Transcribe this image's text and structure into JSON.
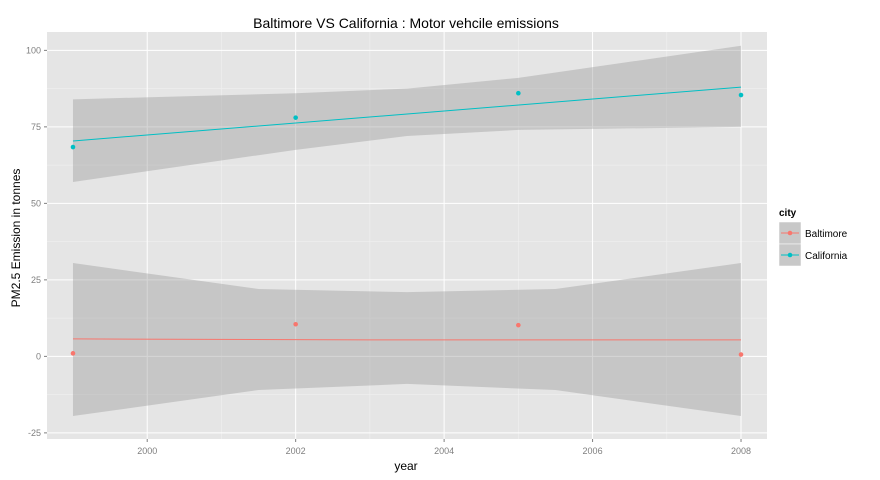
{
  "chart_data": {
    "type": "scatter",
    "title": "Baltimore VS California : Motor vehcile emissions",
    "xlabel": "year",
    "ylabel": "PM2.5 Emission in tonnes",
    "xlim": [
      1998.65,
      2008.35
    ],
    "ylim": [
      -27,
      106
    ],
    "x_ticks": [
      2000,
      2002,
      2004,
      2006,
      2008
    ],
    "x_tick_labels": [
      "2000",
      "2002",
      "2004",
      "2006",
      "2008"
    ],
    "y_ticks": [
      -25,
      0,
      25,
      50,
      75,
      100
    ],
    "y_tick_labels": [
      "-25",
      "0",
      "25",
      "50",
      "75",
      "100"
    ],
    "grid": true,
    "legend": {
      "title": "city",
      "position": "right",
      "entries": [
        "Baltimore",
        "California"
      ]
    },
    "x": [
      1999,
      2002,
      2005,
      2008
    ],
    "series": [
      {
        "name": "Baltimore",
        "color": "#F8766D",
        "values": [
          1,
          10.5,
          10.2,
          0.6
        ],
        "fit": {
          "x": [
            1999,
            2003,
            2008
          ],
          "y": [
            5.7,
            5.4,
            5.4
          ]
        },
        "band_lower": [
          -19.5,
          -11,
          -9,
          -11,
          -19.5
        ],
        "band_upper": [
          30.5,
          22,
          21,
          22,
          30.5
        ],
        "band_x": [
          1999,
          2001.5,
          2003.5,
          2005.5,
          2008
        ]
      },
      {
        "name": "California",
        "color": "#00BFC4",
        "values": [
          68.4,
          78,
          86,
          85.4
        ],
        "fit": {
          "x": [
            1999,
            2008
          ],
          "y": [
            70.4,
            88
          ]
        },
        "band_lower": [
          57,
          67.5,
          72,
          74,
          75
        ],
        "band_upper": [
          84,
          86,
          87.5,
          91,
          101.5
        ],
        "band_x": [
          1999,
          2002,
          2003.5,
          2005,
          2008
        ]
      }
    ]
  }
}
